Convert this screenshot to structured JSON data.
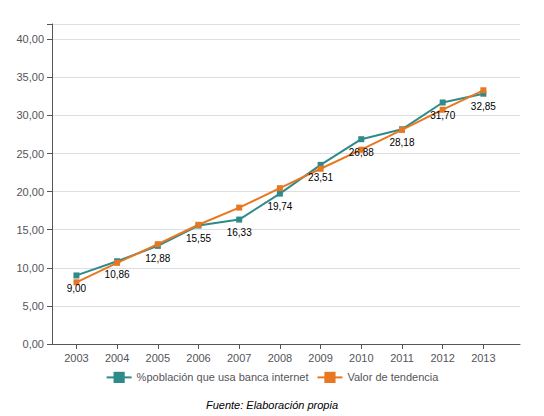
{
  "chart_data": {
    "type": "line",
    "x": [
      2003,
      2004,
      2005,
      2006,
      2007,
      2008,
      2009,
      2010,
      2011,
      2012,
      2013
    ],
    "series": [
      {
        "name": "%población que usa banca internet",
        "color": "#2E8B8A",
        "marker": "square",
        "line_style": "solid",
        "values": [
          9.0,
          10.86,
          12.88,
          15.55,
          16.33,
          19.74,
          23.51,
          26.88,
          28.18,
          31.7,
          32.85
        ],
        "data_labels": true,
        "value_labels": [
          "9,00",
          "10,86",
          "12,88",
          "15,55",
          "16,33",
          "19,74",
          "23,51",
          "26,88",
          "28,18",
          "31,70",
          "32,85"
        ]
      },
      {
        "name": "Valor de tendencia",
        "color": "#E87722",
        "marker": "square",
        "line_style": "solid",
        "values": [
          8.1,
          10.65,
          13.1,
          15.65,
          17.9,
          20.45,
          23.0,
          25.5,
          28.1,
          30.75,
          33.3
        ]
      }
    ],
    "xlim": [
      2002.4,
      2013.9
    ],
    "xticks": [
      2003,
      2004,
      2005,
      2006,
      2007,
      2008,
      2009,
      2010,
      2011,
      2012,
      2013
    ],
    "ylim": [
      0,
      42
    ],
    "yticks": [
      {
        "value": 0,
        "label": "0,00"
      },
      {
        "value": 5,
        "label": "5,00"
      },
      {
        "value": 10,
        "label": "10,00"
      },
      {
        "value": 15,
        "label": "15,00"
      },
      {
        "value": 20,
        "label": "20,00"
      },
      {
        "value": 25,
        "label": "25,00"
      },
      {
        "value": 30,
        "label": "30,00"
      },
      {
        "value": 35,
        "label": "35,00"
      },
      {
        "value": 40,
        "label": "40,00"
      }
    ],
    "grid": "y",
    "legend": "bottom",
    "annotations": [
      "Fuente: Elaboración propia"
    ]
  }
}
